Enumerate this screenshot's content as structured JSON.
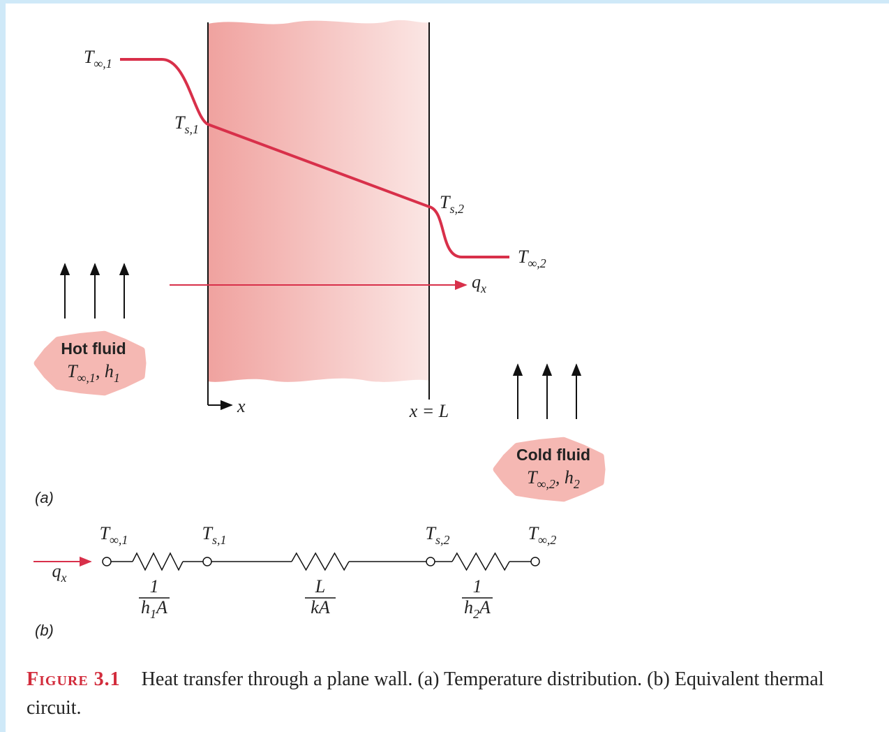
{
  "panel_a": {
    "label": "(a)",
    "t_inf_1": [
      {
        "text": "T"
      },
      {
        "sub": "∞,1"
      }
    ],
    "t_s_1": [
      {
        "text": "T"
      },
      {
        "sub": "s,1"
      }
    ],
    "t_s_2": [
      {
        "text": "T"
      },
      {
        "sub": "s,2"
      }
    ],
    "t_inf_2": [
      {
        "text": "T"
      },
      {
        "sub": "∞,2"
      }
    ],
    "heat_flow": [
      {
        "text": "q"
      },
      {
        "sub": "x"
      }
    ],
    "x_origin": "x",
    "x_end": "x = L",
    "hot_fluid": {
      "title": "Hot fluid",
      "props": [
        {
          "text": "T"
        },
        {
          "sub": "∞,1"
        },
        {
          "text": ", h"
        },
        {
          "sub": "1"
        }
      ]
    },
    "cold_fluid": {
      "title": "Cold fluid",
      "props": [
        {
          "text": "T"
        },
        {
          "sub": "∞,2"
        },
        {
          "text": ", h"
        },
        {
          "sub": "2"
        }
      ]
    }
  },
  "panel_b": {
    "label": "(b)",
    "heat_flow": [
      {
        "text": "q"
      },
      {
        "sub": "x"
      }
    ],
    "nodes": [
      [
        {
          "text": "T"
        },
        {
          "sub": "∞,1"
        }
      ],
      [
        {
          "text": "T"
        },
        {
          "sub": "s,1"
        }
      ],
      [
        {
          "text": "T"
        },
        {
          "sub": "s,2"
        }
      ],
      [
        {
          "text": "T"
        },
        {
          "sub": "∞,2"
        }
      ]
    ],
    "resistances": [
      {
        "numerator": [
          {
            "text": "1"
          }
        ],
        "denominator": [
          {
            "text": "h"
          },
          {
            "sub": "1"
          },
          {
            "text": "A"
          }
        ]
      },
      {
        "numerator": [
          {
            "text": "L"
          }
        ],
        "denominator": [
          {
            "text": "kA"
          }
        ]
      },
      {
        "numerator": [
          {
            "text": "1"
          }
        ],
        "denominator": [
          {
            "text": "h"
          },
          {
            "sub": "2"
          },
          {
            "text": "A"
          }
        ]
      }
    ]
  },
  "caption": {
    "label": "Figure 3.1",
    "text": "Heat transfer through a plane wall. (a) Temperature distribution. (b) Equivalent thermal circuit."
  }
}
